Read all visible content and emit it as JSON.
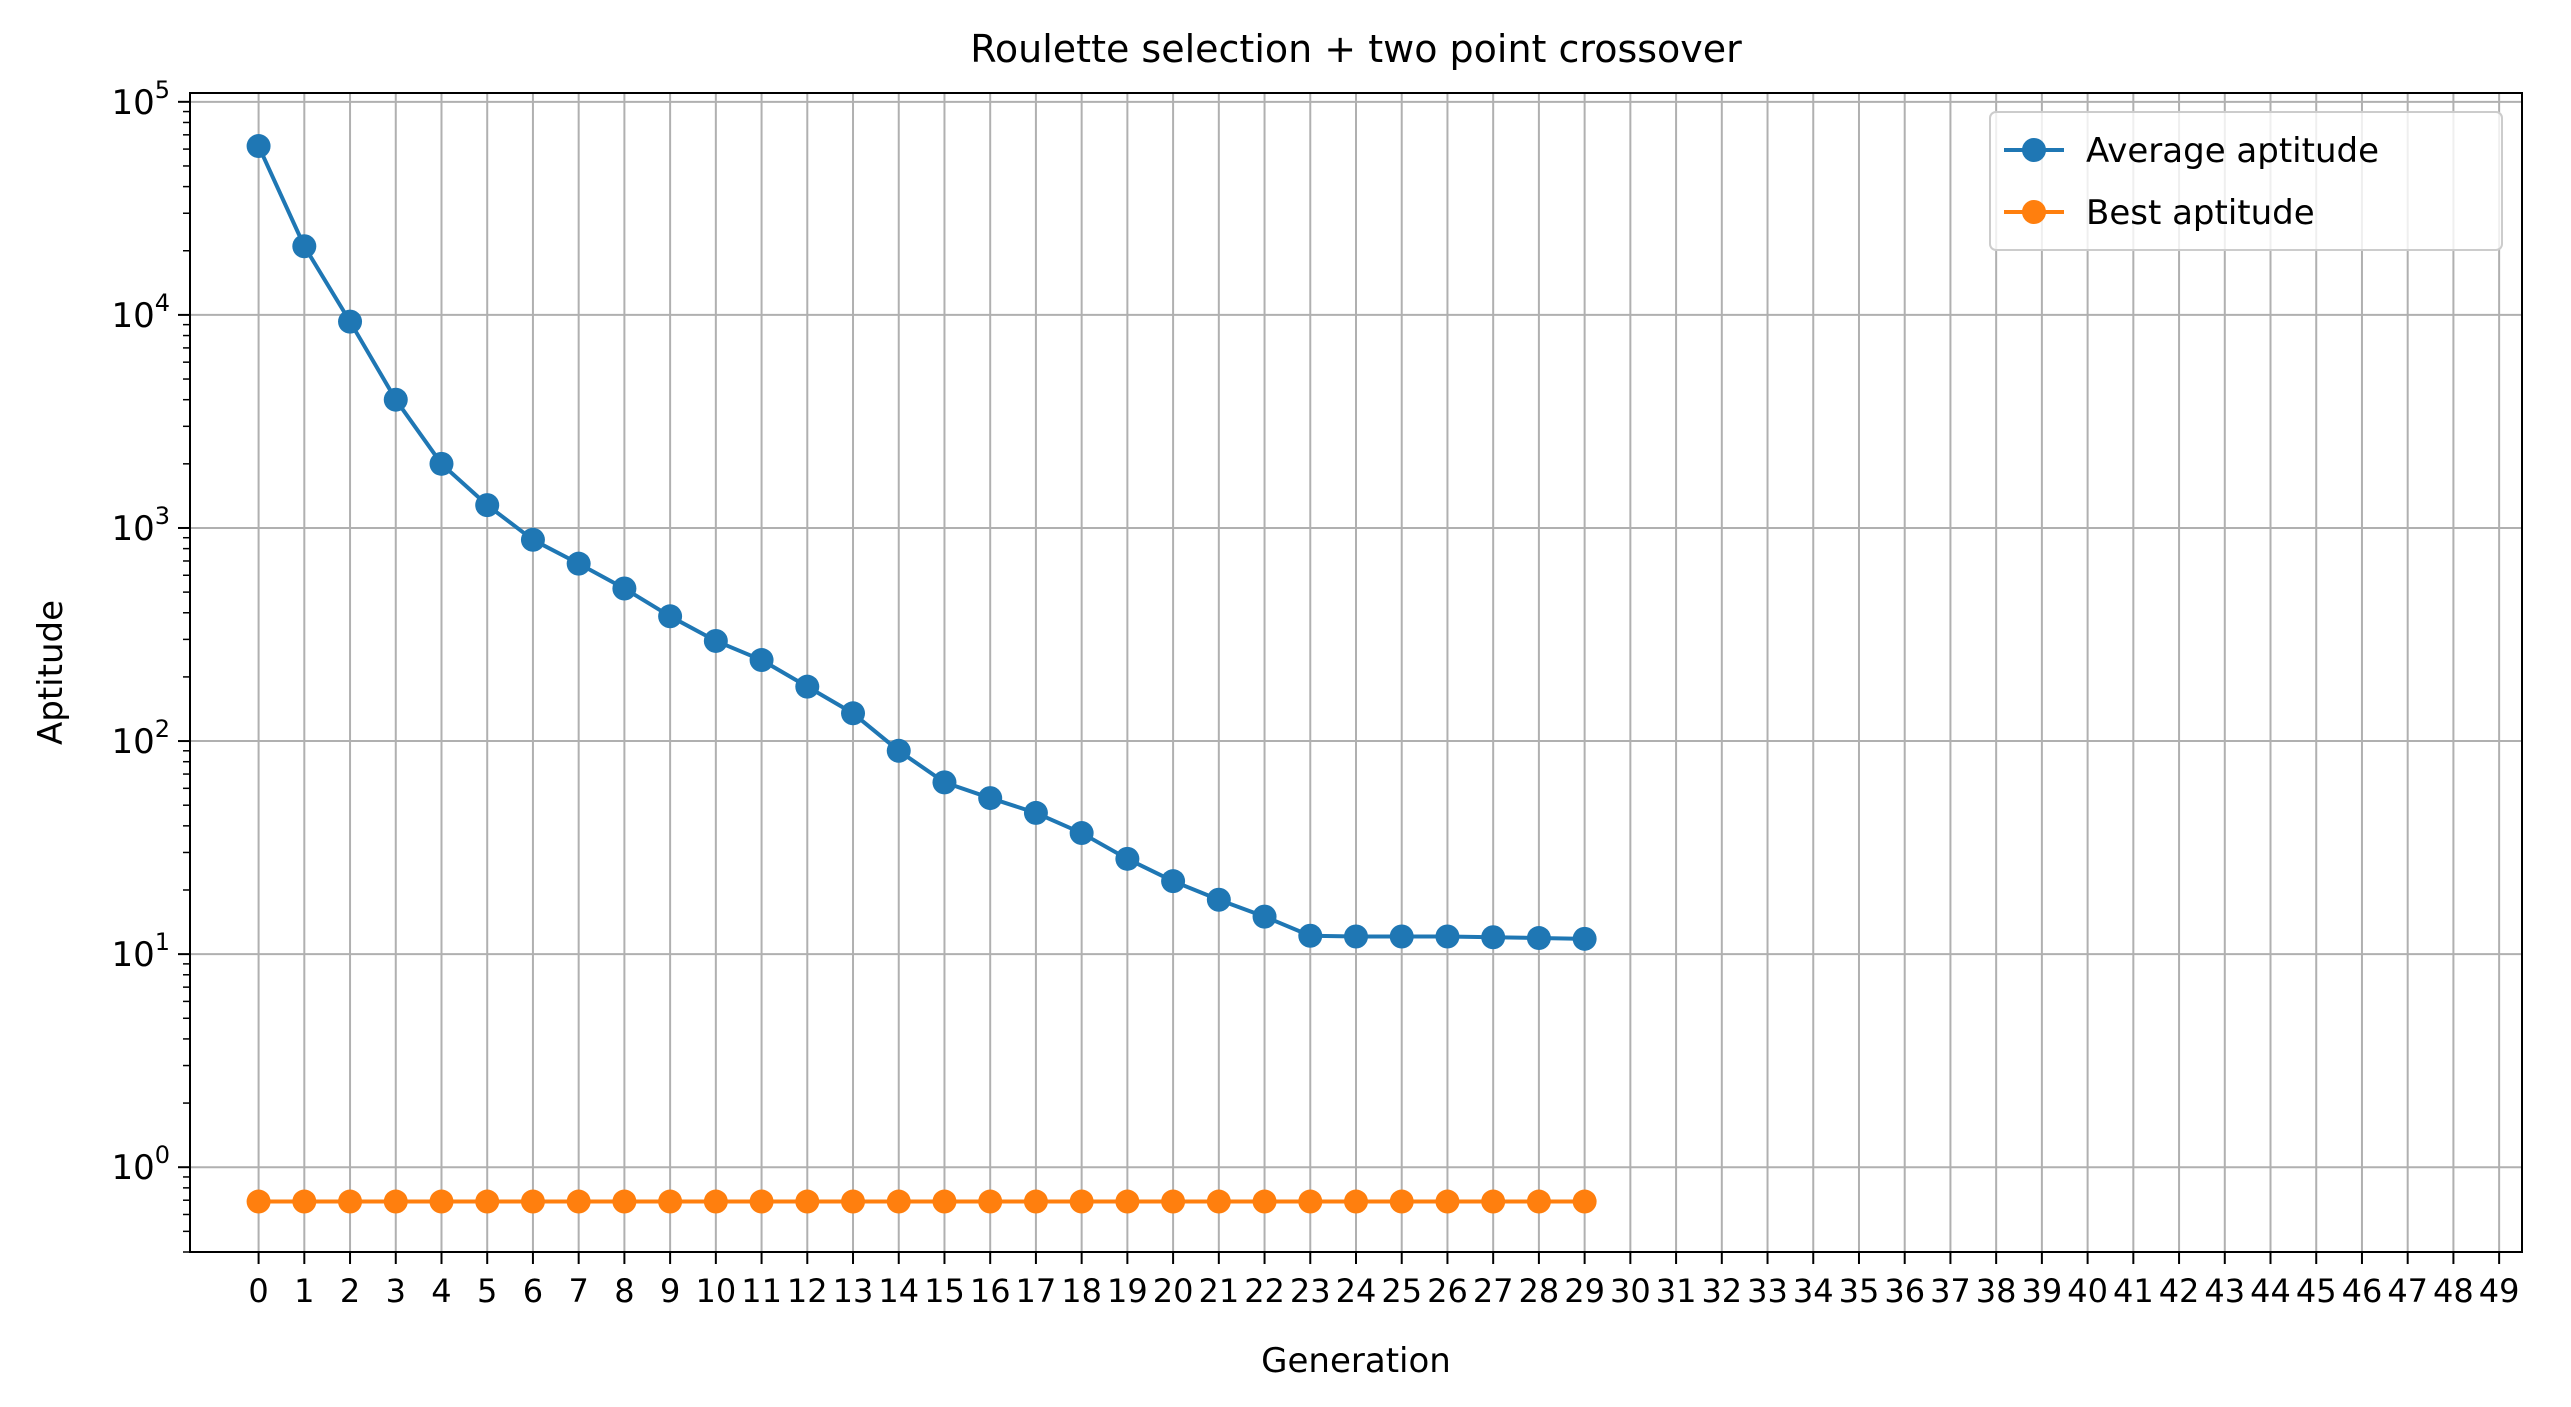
{
  "chart_data": {
    "type": "line",
    "title": "Roulette selection + two point crossover",
    "xlabel": "Generation",
    "ylabel": "Aptitude",
    "yscale": "log",
    "ylim": [
      0.4,
      110000
    ],
    "xlim": [
      -1.5,
      49.5
    ],
    "grid": true,
    "legend_placement": "top-right",
    "x_ticks": [
      "0",
      "1",
      "2",
      "3",
      "4",
      "5",
      "6",
      "7",
      "8",
      "9",
      "10",
      "11",
      "12",
      "13",
      "14",
      "15",
      "16",
      "17",
      "18",
      "19",
      "20",
      "21",
      "22",
      "23",
      "24",
      "25",
      "26",
      "27",
      "28",
      "29",
      "30",
      "31",
      "32",
      "33",
      "34",
      "35",
      "36",
      "37",
      "38",
      "39",
      "40",
      "41",
      "42",
      "43",
      "44",
      "45",
      "46",
      "47",
      "48",
      "49"
    ],
    "y_ticks": [
      {
        "value": 1,
        "base": "10",
        "exp": "0"
      },
      {
        "value": 10,
        "base": "10",
        "exp": "1"
      },
      {
        "value": 100,
        "base": "10",
        "exp": "2"
      },
      {
        "value": 1000,
        "base": "10",
        "exp": "3"
      },
      {
        "value": 10000,
        "base": "10",
        "exp": "4"
      },
      {
        "value": 100000,
        "base": "10",
        "exp": "5"
      }
    ],
    "x": [
      0,
      1,
      2,
      3,
      4,
      5,
      6,
      7,
      8,
      9,
      10,
      11,
      12,
      13,
      14,
      15,
      16,
      17,
      18,
      19,
      20,
      21,
      22,
      23,
      24,
      25,
      26,
      27,
      28,
      29
    ],
    "series": [
      {
        "name": "Average aptitude",
        "color": "#1f77b4",
        "values": [
          62000,
          21000,
          9300,
          4000,
          2000,
          1280,
          880,
          680,
          520,
          385,
          295,
          240,
          180,
          135,
          90,
          64,
          54,
          46,
          37,
          28,
          22,
          18,
          15,
          12.2,
          12.1,
          12.1,
          12.1,
          12.0,
          11.9,
          11.8
        ]
      },
      {
        "name": "Best aptitude",
        "color": "#ff7f0e",
        "values": [
          0.69,
          0.69,
          0.69,
          0.69,
          0.69,
          0.69,
          0.69,
          0.69,
          0.69,
          0.69,
          0.69,
          0.69,
          0.69,
          0.69,
          0.69,
          0.69,
          0.69,
          0.69,
          0.69,
          0.69,
          0.69,
          0.69,
          0.69,
          0.69,
          0.69,
          0.69,
          0.69,
          0.69,
          0.69,
          0.69
        ]
      }
    ]
  }
}
